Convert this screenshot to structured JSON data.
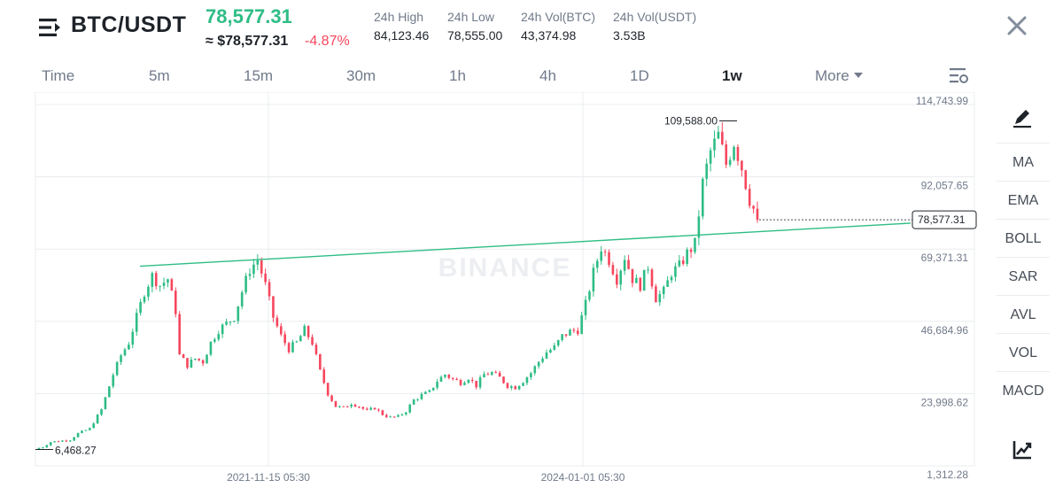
{
  "header": {
    "pair": "BTC/USDT",
    "last_price": "78,577.31",
    "usd_price": "≈ $78,577.31",
    "change": "-4.87%",
    "stats": [
      {
        "label": "24h High",
        "value": "84,123.46"
      },
      {
        "label": "24h Low",
        "value": "78,555.00"
      },
      {
        "label": "24h Vol(BTC)",
        "value": "43,374.98"
      },
      {
        "label": "24h Vol(USDT)",
        "value": "3.53B"
      }
    ]
  },
  "timeframes": [
    "Time",
    "5m",
    "15m",
    "30m",
    "1h",
    "4h",
    "1D",
    "1w",
    "More"
  ],
  "active_timeframe": "1w",
  "indicators": [
    "MA",
    "EMA",
    "BOLL",
    "SAR",
    "AVL",
    "VOL",
    "MACD"
  ],
  "icons": {
    "menu": "menu-icon",
    "close": "close-icon",
    "chart_settings": "chart-settings-icon",
    "draw": "draw-tool-icon",
    "trend": "trend-chart-icon"
  },
  "colors": {
    "up": "#2ebd85",
    "down": "#f6465d",
    "trendline": "#2ebd85",
    "grid": "#eaecef"
  },
  "chart_data": {
    "type": "candlestick",
    "watermark": "BINANCE",
    "y_axis_ticks": [
      "114,743.99",
      "92,057.65",
      "69,371.31",
      "46,684.96",
      "23,998.62",
      "1,312.28"
    ],
    "x_axis_ticks": [
      "2021-11-15 05:30",
      "2024-01-01 05:30"
    ],
    "ylim": [
      1312.28,
      114743.99
    ],
    "current_price_label": "78,577.31",
    "current_price": 78577.31,
    "high_label": "109,588.00",
    "high": 109588,
    "low_label": "6,468.27",
    "low": 6468.27,
    "trendline": {
      "start_price": 64000,
      "end_price": 77500
    },
    "price_path": [
      [
        0,
        6500
      ],
      [
        3,
        8800
      ],
      [
        8,
        9500
      ],
      [
        10,
        11500
      ],
      [
        13,
        13000
      ],
      [
        16,
        19000
      ],
      [
        19,
        30000
      ],
      [
        21,
        36000
      ],
      [
        23,
        40000
      ],
      [
        25,
        48000
      ],
      [
        27,
        56000
      ],
      [
        29,
        61000
      ],
      [
        31,
        58000
      ],
      [
        33,
        60000
      ],
      [
        35,
        50000
      ],
      [
        36,
        36000
      ],
      [
        38,
        33000
      ],
      [
        40,
        35000
      ],
      [
        42,
        34000
      ],
      [
        44,
        40000
      ],
      [
        46,
        44000
      ],
      [
        48,
        46000
      ],
      [
        50,
        48000
      ],
      [
        52,
        56000
      ],
      [
        54,
        63000
      ],
      [
        56,
        66000
      ],
      [
        58,
        58000
      ],
      [
        60,
        48000
      ],
      [
        62,
        42000
      ],
      [
        64,
        38000
      ],
      [
        66,
        40000
      ],
      [
        68,
        44000
      ],
      [
        70,
        40000
      ],
      [
        72,
        31000
      ],
      [
        74,
        24000
      ],
      [
        76,
        20000
      ],
      [
        78,
        19500
      ],
      [
        80,
        21000
      ],
      [
        82,
        20000
      ],
      [
        84,
        18500
      ],
      [
        86,
        19500
      ],
      [
        88,
        17500
      ],
      [
        90,
        16500
      ],
      [
        92,
        16800
      ],
      [
        94,
        18500
      ],
      [
        96,
        22000
      ],
      [
        98,
        23500
      ],
      [
        100,
        24500
      ],
      [
        102,
        28000
      ],
      [
        104,
        30000
      ],
      [
        106,
        28500
      ],
      [
        108,
        27500
      ],
      [
        110,
        29000
      ],
      [
        112,
        26500
      ],
      [
        114,
        30000
      ],
      [
        116,
        30500
      ],
      [
        118,
        29000
      ],
      [
        120,
        26500
      ],
      [
        122,
        26000
      ],
      [
        124,
        28000
      ],
      [
        126,
        30500
      ],
      [
        128,
        34000
      ],
      [
        130,
        37000
      ],
      [
        132,
        38500
      ],
      [
        134,
        42000
      ],
      [
        136,
        43500
      ],
      [
        138,
        44000
      ],
      [
        140,
        52000
      ],
      [
        142,
        62000
      ],
      [
        144,
        70000
      ],
      [
        146,
        66000
      ],
      [
        148,
        60000
      ],
      [
        150,
        67000
      ],
      [
        152,
        60000
      ],
      [
        154,
        58000
      ],
      [
        156,
        64000
      ],
      [
        158,
        54000
      ],
      [
        160,
        56000
      ],
      [
        162,
        62000
      ],
      [
        164,
        64000
      ],
      [
        166,
        68000
      ],
      [
        168,
        71000
      ],
      [
        170,
        90000
      ],
      [
        172,
        100000
      ],
      [
        174,
        105000
      ],
      [
        176,
        96000
      ],
      [
        178,
        103000
      ],
      [
        180,
        95000
      ],
      [
        182,
        85000
      ],
      [
        184,
        79000
      ]
    ]
  }
}
